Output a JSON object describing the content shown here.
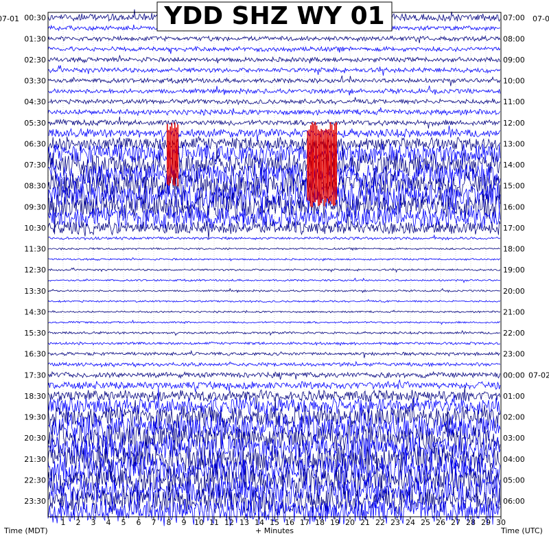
{
  "chart_data": {
    "type": "line",
    "title": "YDD SHZ WY 01",
    "xlabel": "+ Minutes",
    "ylabel_left": "Time (MDT)",
    "ylabel_right": "Time (UTC)",
    "date_left": "07-01",
    "date_right_top": "07-0",
    "date_right_mid": "07-02",
    "x_ticks": [
      "1",
      "2",
      "3",
      "4",
      "5",
      "6",
      "7",
      "8",
      "9",
      "10",
      "11",
      "12",
      "13",
      "14",
      "15",
      "16",
      "17",
      "18",
      "19",
      "20",
      "21",
      "22",
      "23",
      "24",
      "25",
      "26",
      "27",
      "28",
      "29",
      "30"
    ],
    "xlim": [
      0,
      30
    ],
    "rows_per_hour": 2,
    "left_labels": [
      "00:30",
      "01:30",
      "02:30",
      "03:30",
      "04:30",
      "05:30",
      "06:30",
      "07:30",
      "08:30",
      "09:30",
      "10:30",
      "11:30",
      "12:30",
      "13:30",
      "14:30",
      "15:30",
      "16:30",
      "17:30",
      "18:30",
      "19:30",
      "20:30",
      "21:30",
      "22:30",
      "23:30"
    ],
    "right_labels": [
      "07:00",
      "08:00",
      "09:00",
      "10:00",
      "11:00",
      "12:00",
      "13:00",
      "14:00",
      "15:00",
      "16:00",
      "17:00",
      "18:00",
      "19:00",
      "20:00",
      "21:00",
      "22:00",
      "23:00",
      "00:00",
      "01:00",
      "02:00",
      "03:00",
      "04:00",
      "05:00",
      "06:00"
    ],
    "trace_colors": [
      "#000080",
      "#0000ff"
    ],
    "clip_color": "#e00000",
    "grid": true,
    "row_amplitude": [
      0.8,
      0.5,
      0.5,
      0.5,
      0.5,
      0.5,
      0.5,
      0.5,
      0.5,
      0.6,
      0.6,
      0.9,
      1.5,
      2.2,
      2.6,
      2.8,
      3.0,
      3.0,
      2.8,
      2.4,
      1.4,
      0.3,
      0.2,
      0.2,
      0.2,
      0.2,
      0.2,
      0.2,
      0.2,
      0.2,
      0.25,
      0.3,
      0.35,
      0.4,
      0.6,
      0.8,
      1.2,
      1.8,
      2.4,
      2.8,
      3.0,
      3.0,
      3.0,
      3.0,
      3.0,
      3.0,
      2.9,
      2.8
    ],
    "clipped_segments": [
      {
        "row": 12,
        "from": 7.9,
        "to": 8.6
      },
      {
        "row": 13,
        "from": 7.9,
        "to": 8.6
      },
      {
        "row": 14,
        "from": 7.9,
        "to": 8.6
      },
      {
        "row": 12,
        "from": 17.2,
        "to": 19.1
      },
      {
        "row": 13,
        "from": 17.2,
        "to": 19.1
      },
      {
        "row": 14,
        "from": 17.2,
        "to": 19.1
      },
      {
        "row": 15,
        "from": 17.2,
        "to": 19.1
      },
      {
        "row": 16,
        "from": 17.2,
        "to": 19.1
      }
    ]
  }
}
